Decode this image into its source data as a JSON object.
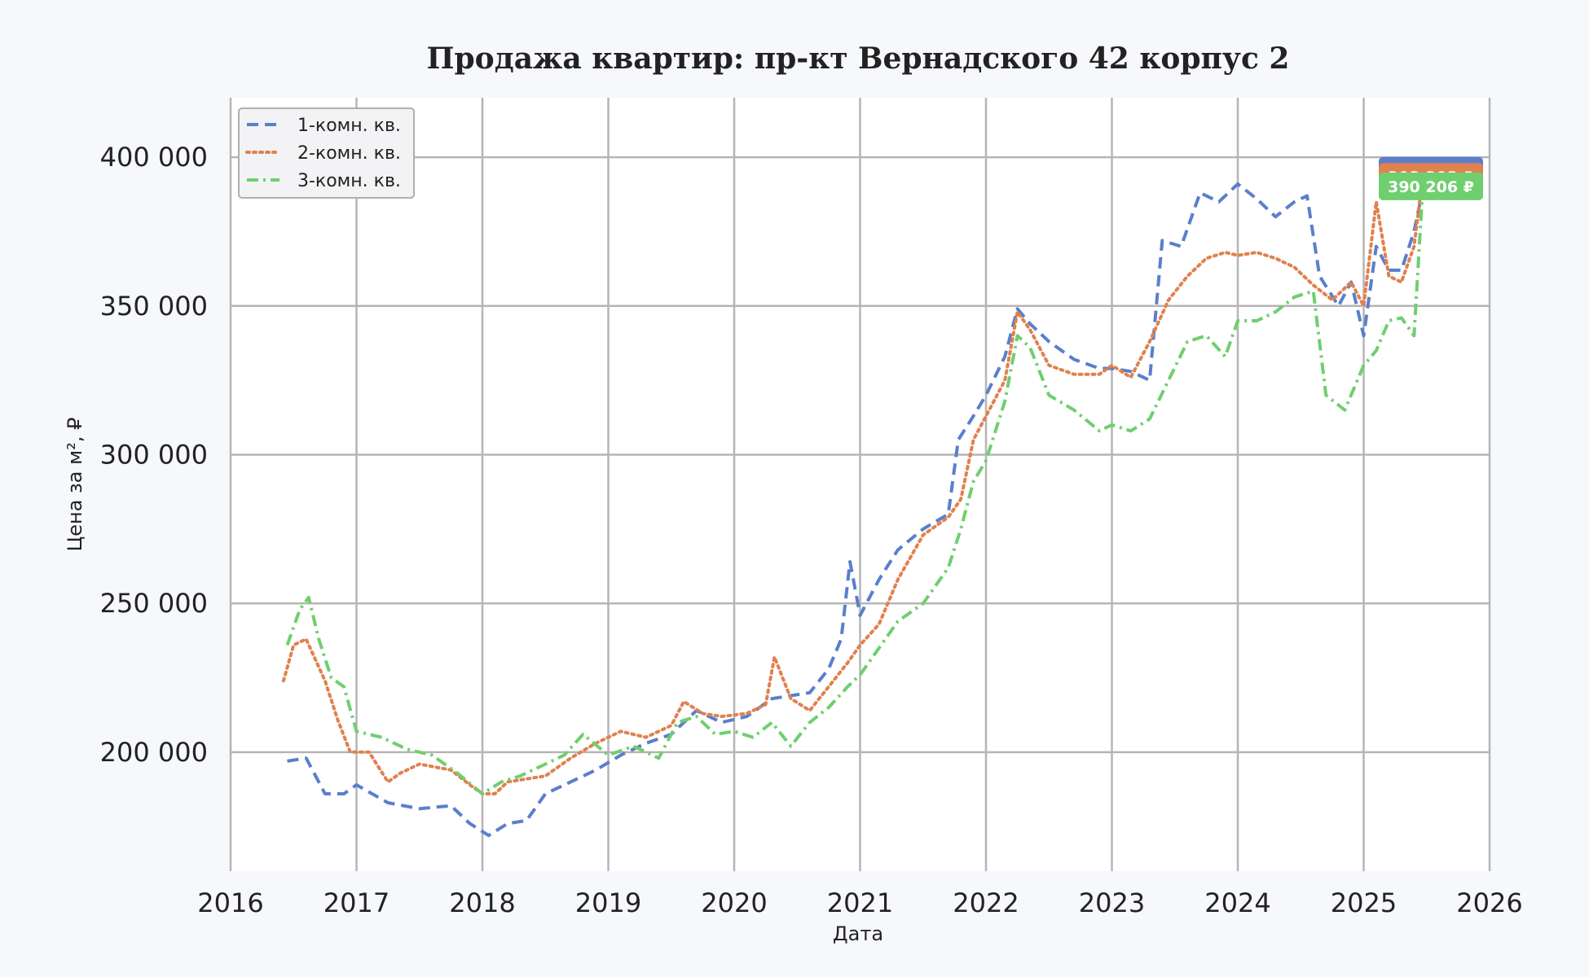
{
  "chart_data": {
    "type": "line",
    "title": "Продажа квартир: пр-кт Вернадского 42 корпус 2",
    "xlabel": "Дата",
    "ylabel": "Цена за м², ₽",
    "xlim": [
      2016,
      2026
    ],
    "ylim": [
      160000,
      420000
    ],
    "x_ticks": [
      2016,
      2017,
      2018,
      2019,
      2020,
      2021,
      2022,
      2023,
      2024,
      2025,
      2026
    ],
    "x_tick_labels": [
      "2016",
      "2017",
      "2018",
      "2019",
      "2020",
      "2021",
      "2022",
      "2023",
      "2024",
      "2025",
      "2026"
    ],
    "y_ticks": [
      200000,
      250000,
      300000,
      350000,
      400000
    ],
    "y_tick_labels": [
      "200 000",
      "250 000",
      "300 000",
      "350 000",
      "400 000"
    ],
    "grid": true,
    "legend_position": "top-left",
    "series": [
      {
        "name": "1-комн. кв.",
        "color": "#5a7fcc",
        "dash": "dashed",
        "end_label": "395 395 ₽",
        "x": [
          2016.45,
          2016.6,
          2016.75,
          2016.9,
          2017.0,
          2017.25,
          2017.5,
          2017.75,
          2017.9,
          2018.05,
          2018.2,
          2018.35,
          2018.5,
          2018.7,
          2018.9,
          2019.1,
          2019.3,
          2019.5,
          2019.7,
          2019.9,
          2020.1,
          2020.3,
          2020.45,
          2020.6,
          2020.75,
          2020.85,
          2020.92,
          2021.0,
          2021.15,
          2021.3,
          2021.5,
          2021.7,
          2021.78,
          2021.9,
          2022.0,
          2022.15,
          2022.25,
          2022.35,
          2022.5,
          2022.7,
          2022.9,
          2023.0,
          2023.15,
          2023.3,
          2023.4,
          2023.55,
          2023.7,
          2023.85,
          2024.0,
          2024.15,
          2024.3,
          2024.45,
          2024.55,
          2024.65,
          2024.8,
          2024.9,
          2025.0,
          2025.1,
          2025.2,
          2025.3,
          2025.4,
          2025.5
        ],
        "values": [
          197000,
          198000,
          186000,
          186000,
          189000,
          183000,
          181000,
          182000,
          176000,
          172000,
          176000,
          177000,
          186000,
          190000,
          194000,
          199000,
          203000,
          206000,
          214000,
          210000,
          212000,
          218000,
          219000,
          220000,
          228000,
          238000,
          264000,
          246000,
          258000,
          268000,
          275000,
          280000,
          305000,
          313000,
          320000,
          333000,
          349000,
          344000,
          338000,
          332000,
          329000,
          329000,
          328000,
          325000,
          372000,
          370000,
          388000,
          385000,
          391000,
          386000,
          380000,
          385000,
          387000,
          360000,
          350000,
          358000,
          340000,
          370000,
          362000,
          362000,
          375000,
          395395
        ]
      },
      {
        "name": "2-комн. кв.",
        "color": "#e0814f",
        "dash": "dotted",
        "end_label": "393 393 ₽",
        "x": [
          2016.42,
          2016.5,
          2016.6,
          2016.75,
          2016.85,
          2016.95,
          2017.1,
          2017.25,
          2017.35,
          2017.5,
          2017.75,
          2017.9,
          2018.0,
          2018.1,
          2018.2,
          2018.35,
          2018.5,
          2018.7,
          2018.9,
          2019.1,
          2019.3,
          2019.5,
          2019.6,
          2019.75,
          2019.9,
          2020.1,
          2020.25,
          2020.32,
          2020.45,
          2020.6,
          2020.75,
          2020.9,
          2021.0,
          2021.15,
          2021.3,
          2021.5,
          2021.7,
          2021.8,
          2021.9,
          2022.0,
          2022.15,
          2022.25,
          2022.35,
          2022.5,
          2022.7,
          2022.9,
          2023.0,
          2023.15,
          2023.3,
          2023.45,
          2023.6,
          2023.75,
          2023.9,
          2024.0,
          2024.15,
          2024.3,
          2024.45,
          2024.6,
          2024.75,
          2024.9,
          2025.0,
          2025.1,
          2025.2,
          2025.3,
          2025.4,
          2025.47
        ],
        "values": [
          224000,
          236000,
          238000,
          224000,
          211000,
          200000,
          200000,
          190000,
          193000,
          196000,
          194000,
          189000,
          186000,
          186000,
          190000,
          191000,
          192000,
          198000,
          203000,
          207000,
          205000,
          209000,
          217000,
          213000,
          212000,
          213000,
          216000,
          232000,
          218000,
          214000,
          222000,
          230000,
          236000,
          243000,
          258000,
          273000,
          279000,
          285000,
          305000,
          313000,
          325000,
          348000,
          342000,
          330000,
          327000,
          327000,
          330000,
          326000,
          338000,
          352000,
          360000,
          366000,
          368000,
          367000,
          368000,
          366000,
          363000,
          357000,
          352000,
          358000,
          350000,
          385000,
          360000,
          358000,
          370000,
          393393
        ]
      },
      {
        "name": "3-комн. кв.",
        "color": "#6fcf6f",
        "dash": "dashdot",
        "end_label": "390 206 ₽",
        "x": [
          2016.45,
          2016.55,
          2016.62,
          2016.7,
          2016.8,
          2016.9,
          2017.0,
          2017.2,
          2017.4,
          2017.6,
          2017.8,
          2018.0,
          2018.15,
          2018.3,
          2018.5,
          2018.65,
          2018.8,
          2019.0,
          2019.2,
          2019.4,
          2019.55,
          2019.7,
          2019.85,
          2020.0,
          2020.15,
          2020.3,
          2020.45,
          2020.6,
          2020.75,
          2020.9,
          2021.0,
          2021.15,
          2021.3,
          2021.5,
          2021.7,
          2021.8,
          2021.9,
          2022.0,
          2022.15,
          2022.25,
          2022.35,
          2022.5,
          2022.7,
          2022.9,
          2023.0,
          2023.15,
          2023.3,
          2023.45,
          2023.6,
          2023.75,
          2023.9,
          2024.0,
          2024.15,
          2024.3,
          2024.45,
          2024.6,
          2024.7,
          2024.85,
          2025.0,
          2025.1,
          2025.2,
          2025.3,
          2025.4,
          2025.47
        ],
        "values": [
          236000,
          248000,
          252000,
          238000,
          225000,
          222000,
          207000,
          205000,
          201000,
          199000,
          193000,
          186000,
          190000,
          192000,
          196000,
          199000,
          206000,
          199000,
          202000,
          198000,
          210000,
          212000,
          206000,
          207000,
          205000,
          210000,
          202000,
          210000,
          215000,
          222000,
          226000,
          235000,
          244000,
          250000,
          262000,
          275000,
          291000,
          298000,
          318000,
          340000,
          336000,
          320000,
          315000,
          308000,
          310000,
          308000,
          312000,
          325000,
          338000,
          340000,
          333000,
          345000,
          345000,
          348000,
          353000,
          355000,
          320000,
          315000,
          330000,
          335000,
          345000,
          346000,
          340000,
          390206
        ]
      }
    ]
  }
}
